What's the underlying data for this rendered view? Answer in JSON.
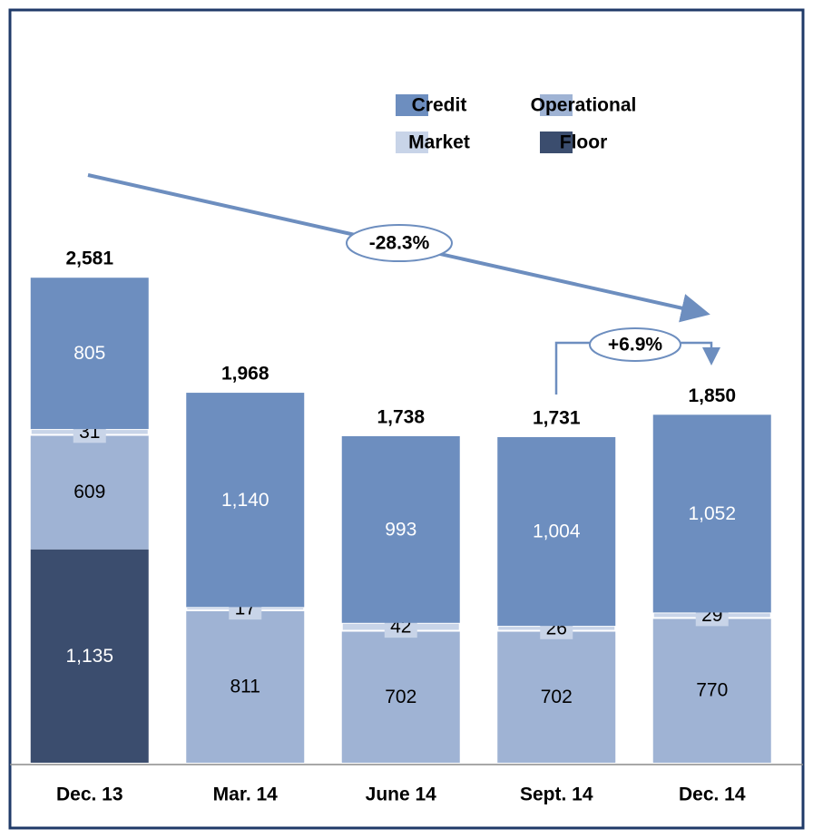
{
  "chart_data": {
    "type": "stacked_bar",
    "categories": [
      "Dec. 13",
      "Mar. 14",
      "June 14",
      "Sept. 14",
      "Dec. 14"
    ],
    "series": [
      {
        "name": "Floor",
        "color": "#3b4d6e",
        "label_color": "#ffffff",
        "values": [
          1135,
          null,
          null,
          null,
          null
        ],
        "value_labels": [
          "1,135",
          null,
          null,
          null,
          null
        ]
      },
      {
        "name": "Operational",
        "color": "#9fb3d4",
        "label_color": "#000000",
        "values": [
          609,
          811,
          702,
          702,
          770
        ]
      },
      {
        "name": "Market",
        "color": "#c8d4e8",
        "label_color": "#000000",
        "values": [
          31,
          17,
          42,
          26,
          29
        ]
      },
      {
        "name": "Credit",
        "color": "#6d8ebf",
        "label_color": "#ffffff",
        "values": [
          805,
          1140,
          993,
          1004,
          1052
        ],
        "value_labels": [
          "805",
          "1,140",
          "993",
          "1,004",
          "1,052"
        ]
      }
    ],
    "totals": [
      2581,
      1968,
      1738,
      1731,
      1850
    ],
    "total_labels": [
      "2,581",
      "1,968",
      "1,738",
      "1,731",
      "1,850"
    ],
    "annotations": [
      "-28.3%",
      "+6.9%"
    ],
    "legend_order": [
      3,
      1,
      2,
      0
    ]
  }
}
